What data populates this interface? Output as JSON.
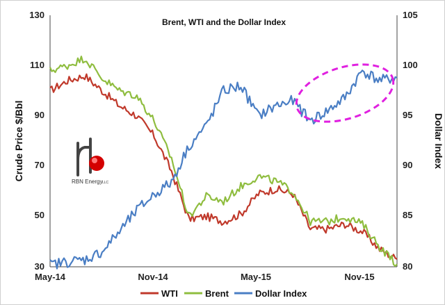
{
  "chart_data": {
    "type": "line",
    "title": "Brent, WTI and the Dollar Index",
    "ylabel_left": "Crude Price $/Bbl",
    "ylabel_right": "Dollar Index",
    "ylim_left": [
      30,
      130
    ],
    "ylim_right": [
      80,
      105
    ],
    "yticks_left": [
      "130",
      "110",
      "90",
      "70",
      "50",
      "30"
    ],
    "yticks_right": [
      "105",
      "100",
      "95",
      "90",
      "85",
      "80"
    ],
    "xtick_labels": [
      "May-14",
      "Nov-14",
      "May-15",
      "Nov-15"
    ],
    "x": [
      "May-14",
      "Jun-14",
      "Jul-14",
      "Aug-14",
      "Sep-14",
      "Oct-14",
      "Nov-14",
      "Dec-14",
      "Jan-15",
      "Feb-15",
      "Mar-15",
      "Apr-15",
      "May-15",
      "Jun-15",
      "Jul-15",
      "Aug-15",
      "Sep-15",
      "Oct-15",
      "Nov-15",
      "Dec-15",
      "Jan-16"
    ],
    "series": [
      {
        "name": "WTI",
        "axis": "left",
        "color": "#c0392b",
        "values": [
          100,
          104,
          106,
          100,
          94,
          90,
          82,
          68,
          49,
          50,
          48,
          51,
          59,
          61,
          59,
          45,
          45,
          47,
          44,
          37,
          33
        ]
      },
      {
        "name": "Brent",
        "axis": "left",
        "color": "#8fbd3f",
        "values": [
          108,
          110,
          113,
          105,
          100,
          98,
          88,
          73,
          50,
          58,
          56,
          62,
          66,
          64,
          60,
          48,
          48,
          50,
          47,
          38,
          31
        ]
      },
      {
        "name": "Dollar Index",
        "axis": "right",
        "color": "#4a7ec4",
        "values": [
          80.2,
          80.5,
          80.7,
          81.5,
          83.5,
          85.6,
          87.2,
          88.4,
          92,
          94,
          97.5,
          98,
          95,
          96,
          96.5,
          94.5,
          95.5,
          96.8,
          99.5,
          98.5,
          98.8
        ]
      }
    ],
    "legend_position": "bottom-center",
    "annotation": "magenta dashed ellipse around Dollar Index, Aug-15 to Jan-16",
    "logo": {
      "text": "RBN Energy",
      "suffix": "LLC"
    },
    "grid": false
  }
}
